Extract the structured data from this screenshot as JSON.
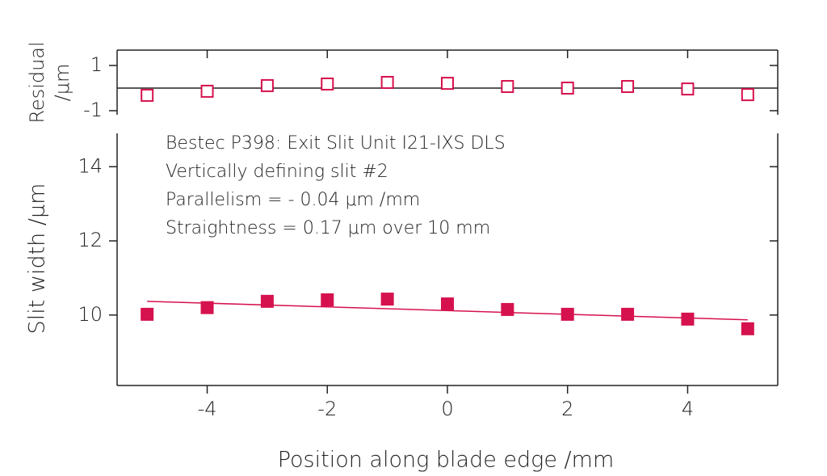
{
  "chart_data": [
    {
      "type": "scatter",
      "y_label_lines": [
        "Residual",
        "/μm"
      ],
      "x": [
        -5,
        -4,
        -3,
        -2,
        -1,
        0,
        1,
        2,
        3,
        4,
        5
      ],
      "series": [
        {
          "color": "#d6124e",
          "marker": "open-square",
          "values": [
            -0.32,
            -0.14,
            0.11,
            0.18,
            0.25,
            0.21,
            0.07,
            0,
            0.07,
            -0.04,
            -0.29
          ]
        }
      ],
      "zero_line": true,
      "xlim": [
        -5.5,
        5.5
      ],
      "xticks": [
        -4,
        -2,
        0,
        2,
        4
      ],
      "ylim": [
        -1.18,
        1.68
      ],
      "yticks": [
        -1,
        1
      ]
    },
    {
      "type": "scatter",
      "x_label": "Position along blade edge /mm",
      "y_label": "Slit width /μm",
      "annotations": [
        "Bestec P398: Exit Slit Unit I21-IXS DLS",
        "Vertically defining slit #2",
        "Parallelism = - 0.04 μm /mm",
        "Straightness = 0.17 μm over 10 mm"
      ],
      "x": [
        -5,
        -4,
        -3,
        -2,
        -1,
        0,
        1,
        2,
        3,
        4,
        5
      ],
      "series": [
        {
          "color": "#d6124e",
          "marker": "filled-square",
          "values": [
            10.02,
            10.2,
            10.37,
            10.41,
            10.43,
            10.3,
            10.15,
            10.02,
            10.02,
            9.89,
            9.63
          ]
        }
      ],
      "fit": {
        "x": [
          -5,
          5
        ],
        "values": [
          10.37,
          9.87
        ],
        "color": "#d6124e"
      },
      "xlim": [
        -5.5,
        5.5
      ],
      "xticks": [
        -4,
        -2,
        0,
        2,
        4
      ],
      "ylim": [
        8.1,
        14.9
      ],
      "yticks": [
        10,
        12,
        14
      ]
    }
  ]
}
